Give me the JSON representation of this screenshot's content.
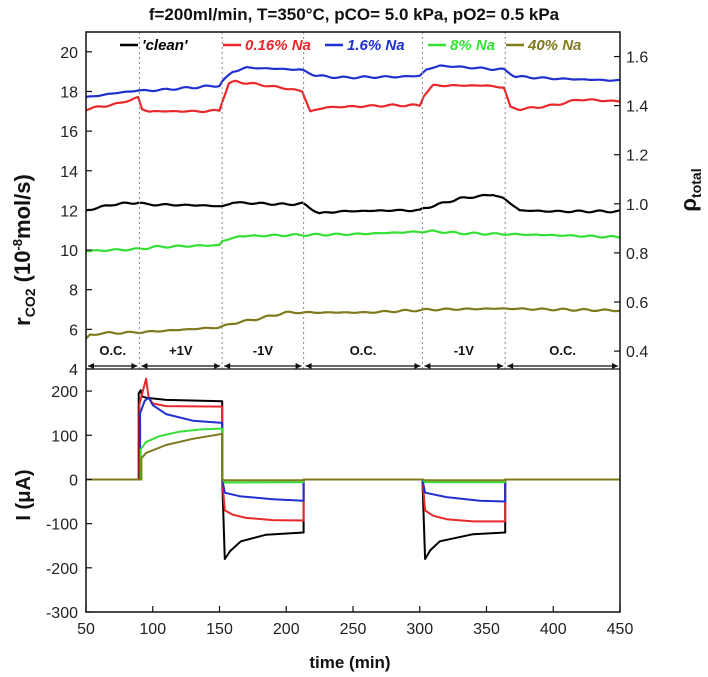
{
  "chart_data": {
    "type": "line",
    "title": "f=200ml/min, T=350°C, pCO= 5.0 kPa, pO2= 0.5 kPa",
    "xlabel": "time (min)",
    "xlim": [
      50,
      450
    ],
    "xticks": [
      50,
      100,
      150,
      200,
      250,
      300,
      350,
      400,
      450
    ],
    "colors": {
      "clean": "#000000",
      "na016": "#e8282a",
      "na16": "#1f2fd0",
      "na8": "#33e033",
      "na40": "#807a1e"
    },
    "legend": [
      {
        "key": "clean",
        "label": "'clean'"
      },
      {
        "key": "na016",
        "label": "0.16% Na"
      },
      {
        "key": "na16",
        "label": "1.6% Na"
      },
      {
        "key": "na8",
        "label": "8% Na"
      },
      {
        "key": "na40",
        "label": "40% Na"
      }
    ],
    "segments": [
      {
        "label": "O.C.",
        "from": 50,
        "to": 90
      },
      {
        "label": "+1V",
        "from": 90,
        "to": 152
      },
      {
        "label": "-1V",
        "from": 152,
        "to": 213
      },
      {
        "label": "O.C.",
        "from": 213,
        "to": 302
      },
      {
        "label": "-1V",
        "from": 302,
        "to": 364
      },
      {
        "label": "O.C.",
        "from": 364,
        "to": 450
      }
    ],
    "top_panel": {
      "ylabel_main": "r",
      "ylabel_sub": "CO2",
      "ylabel_unit_pre": " (10",
      "ylabel_unit_sup": "-8",
      "ylabel_unit_post": "mol/s)",
      "ylim": [
        4,
        21
      ],
      "yticks": [
        4,
        6,
        8,
        10,
        12,
        14,
        16,
        18,
        20
      ],
      "ylabel_right_main": "ρ",
      "ylabel_right_sub": "total",
      "ylim_right": [
        0.327,
        1.7
      ],
      "yticks_right": [
        0.4,
        0.6,
        0.8,
        1.0,
        1.2,
        1.4,
        1.6
      ],
      "series": [
        {
          "key": "clean",
          "name": "'clean'",
          "x": [
            50,
            70,
            89,
            95,
            140,
            150,
            152,
            160,
            200,
            212,
            225,
            240,
            280,
            300,
            303,
            330,
            355,
            363,
            375,
            400,
            450
          ],
          "y": [
            12.0,
            12.3,
            12.4,
            12.3,
            12.25,
            12.2,
            12.2,
            12.4,
            12.3,
            12.35,
            11.85,
            11.95,
            12.0,
            12.0,
            12.1,
            12.6,
            12.8,
            12.6,
            12.0,
            11.95,
            11.95
          ]
        },
        {
          "key": "na016",
          "name": "0.16% Na",
          "x": [
            50,
            75,
            89,
            92,
            97,
            140,
            150,
            152,
            157,
            162,
            185,
            205,
            212,
            218,
            230,
            280,
            300,
            303,
            310,
            350,
            363,
            368,
            375,
            400,
            420,
            450
          ],
          "y": [
            17.1,
            17.4,
            17.7,
            17.1,
            17.0,
            17.0,
            17.05,
            17.5,
            18.4,
            18.5,
            18.3,
            18.1,
            18.0,
            17.0,
            17.2,
            17.3,
            17.3,
            17.8,
            18.3,
            18.3,
            18.2,
            17.2,
            17.1,
            17.3,
            17.6,
            17.5
          ]
        },
        {
          "key": "na16",
          "name": "1.6% Na",
          "x": [
            50,
            70,
            89,
            100,
            140,
            150,
            152,
            160,
            170,
            210,
            213,
            222,
            240,
            290,
            300,
            305,
            315,
            350,
            363,
            372,
            400,
            450
          ],
          "y": [
            17.7,
            17.9,
            18.05,
            18.05,
            18.25,
            18.3,
            18.5,
            19.0,
            19.2,
            19.1,
            19.05,
            18.8,
            18.7,
            18.75,
            18.8,
            19.1,
            19.3,
            19.15,
            19.1,
            18.75,
            18.65,
            18.55
          ]
        },
        {
          "key": "na8",
          "name": "8% Na",
          "x": [
            50,
            90,
            100,
            150,
            152,
            165,
            200,
            250,
            310,
            330,
            400,
            450
          ],
          "y": [
            9.95,
            10.05,
            10.15,
            10.25,
            10.45,
            10.7,
            10.75,
            10.8,
            10.95,
            10.85,
            10.75,
            10.65
          ]
        },
        {
          "key": "na40",
          "name": "40% Na",
          "x": [
            50,
            53,
            60,
            90,
            150,
            160,
            180,
            200,
            215,
            260,
            310,
            360,
            450
          ],
          "y": [
            5.5,
            5.7,
            5.8,
            5.85,
            6.1,
            6.3,
            6.55,
            6.85,
            6.85,
            6.85,
            7.0,
            7.05,
            6.95
          ]
        }
      ]
    },
    "bottom_panel": {
      "ylabel_main": "I",
      "ylabel_unit": " (μA)",
      "ylim": [
        -300,
        250
      ],
      "yticks": [
        -300,
        -200,
        -100,
        0,
        100,
        200
      ],
      "series": [
        {
          "key": "clean",
          "name": "'clean'",
          "x": [
            50,
            89.5,
            89.5,
            91,
            92,
            95,
            110,
            152,
            152,
            154,
            158,
            166,
            185,
            213,
            213,
            302,
            302,
            304,
            308,
            315,
            340,
            364,
            364,
            450
          ],
          "y": [
            0,
            0,
            195,
            202,
            188,
            185,
            180,
            177,
            0,
            -180,
            -162,
            -140,
            -125,
            -120,
            0,
            0,
            0,
            -180,
            -160,
            -140,
            -124,
            -120,
            0,
            0
          ]
        },
        {
          "key": "na016",
          "name": "0.16% Na",
          "x": [
            50,
            90,
            90,
            93,
            95,
            97,
            100,
            110,
            152,
            152,
            154,
            160,
            170,
            190,
            213,
            213,
            302,
            302,
            304,
            310,
            320,
            340,
            364,
            364,
            450
          ],
          "y": [
            0,
            0,
            170,
            205,
            228,
            185,
            172,
            166,
            165,
            0,
            -70,
            -80,
            -87,
            -92,
            -93,
            0,
            0,
            0,
            -70,
            -82,
            -90,
            -95,
            -95,
            0,
            0
          ]
        },
        {
          "key": "na16",
          "name": "1.6% Na",
          "x": [
            50,
            90.5,
            90.5,
            94,
            97,
            100,
            110,
            130,
            152,
            152,
            154,
            165,
            190,
            213,
            213,
            302,
            302,
            304,
            320,
            345,
            364,
            364,
            450
          ],
          "y": [
            0,
            0,
            150,
            178,
            185,
            168,
            148,
            133,
            128,
            0,
            -30,
            -38,
            -45,
            -48,
            0,
            0,
            0,
            -30,
            -40,
            -48,
            -50,
            0,
            0
          ]
        },
        {
          "key": "na8",
          "name": "8% Na",
          "x": [
            50,
            91,
            91,
            95,
            105,
            120,
            135,
            150,
            152,
            152,
            154,
            213,
            213,
            302,
            302,
            304,
            364,
            364,
            450
          ],
          "y": [
            0,
            0,
            68,
            85,
            98,
            108,
            113,
            115,
            115,
            0,
            -7,
            -6,
            0,
            0,
            0,
            -6,
            -6,
            0,
            0
          ]
        },
        {
          "key": "na40",
          "name": "40% Na",
          "x": [
            50,
            91.5,
            91.5,
            95,
            110,
            130,
            152,
            152,
            154,
            213,
            213,
            302,
            302,
            304,
            364,
            364,
            450
          ],
          "y": [
            0,
            0,
            48,
            60,
            78,
            92,
            103,
            0,
            -2,
            -2,
            0,
            0,
            0,
            -2,
            -2,
            0,
            0
          ]
        }
      ]
    }
  }
}
